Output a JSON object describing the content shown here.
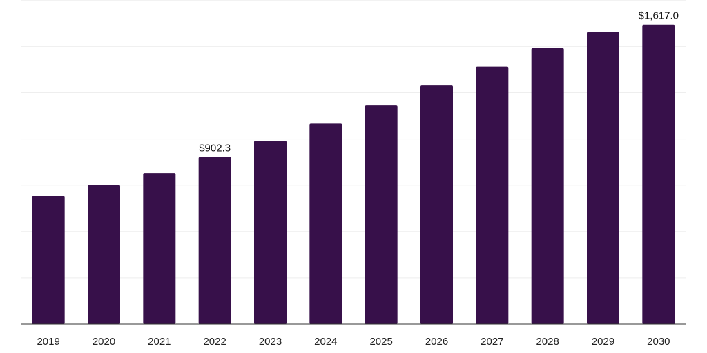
{
  "chart_data": {
    "type": "bar",
    "categories": [
      "2019",
      "2020",
      "2021",
      "2022",
      "2023",
      "2024",
      "2025",
      "2026",
      "2027",
      "2028",
      "2029",
      "2030"
    ],
    "values": [
      690,
      750,
      815,
      902.3,
      990,
      1082,
      1180,
      1288,
      1390,
      1490,
      1577,
      1617.0
    ],
    "data_labels": [
      {
        "index": 3,
        "text": "$902.3"
      },
      {
        "index": 11,
        "text": "$1,617.0"
      }
    ],
    "title": "",
    "xlabel": "",
    "ylabel": "",
    "ylim": [
      0,
      1750
    ],
    "grid": true,
    "legend": "none",
    "colors": {
      "bar": "#37104a",
      "grid": "#eeeeee",
      "axis": "#333333"
    }
  }
}
